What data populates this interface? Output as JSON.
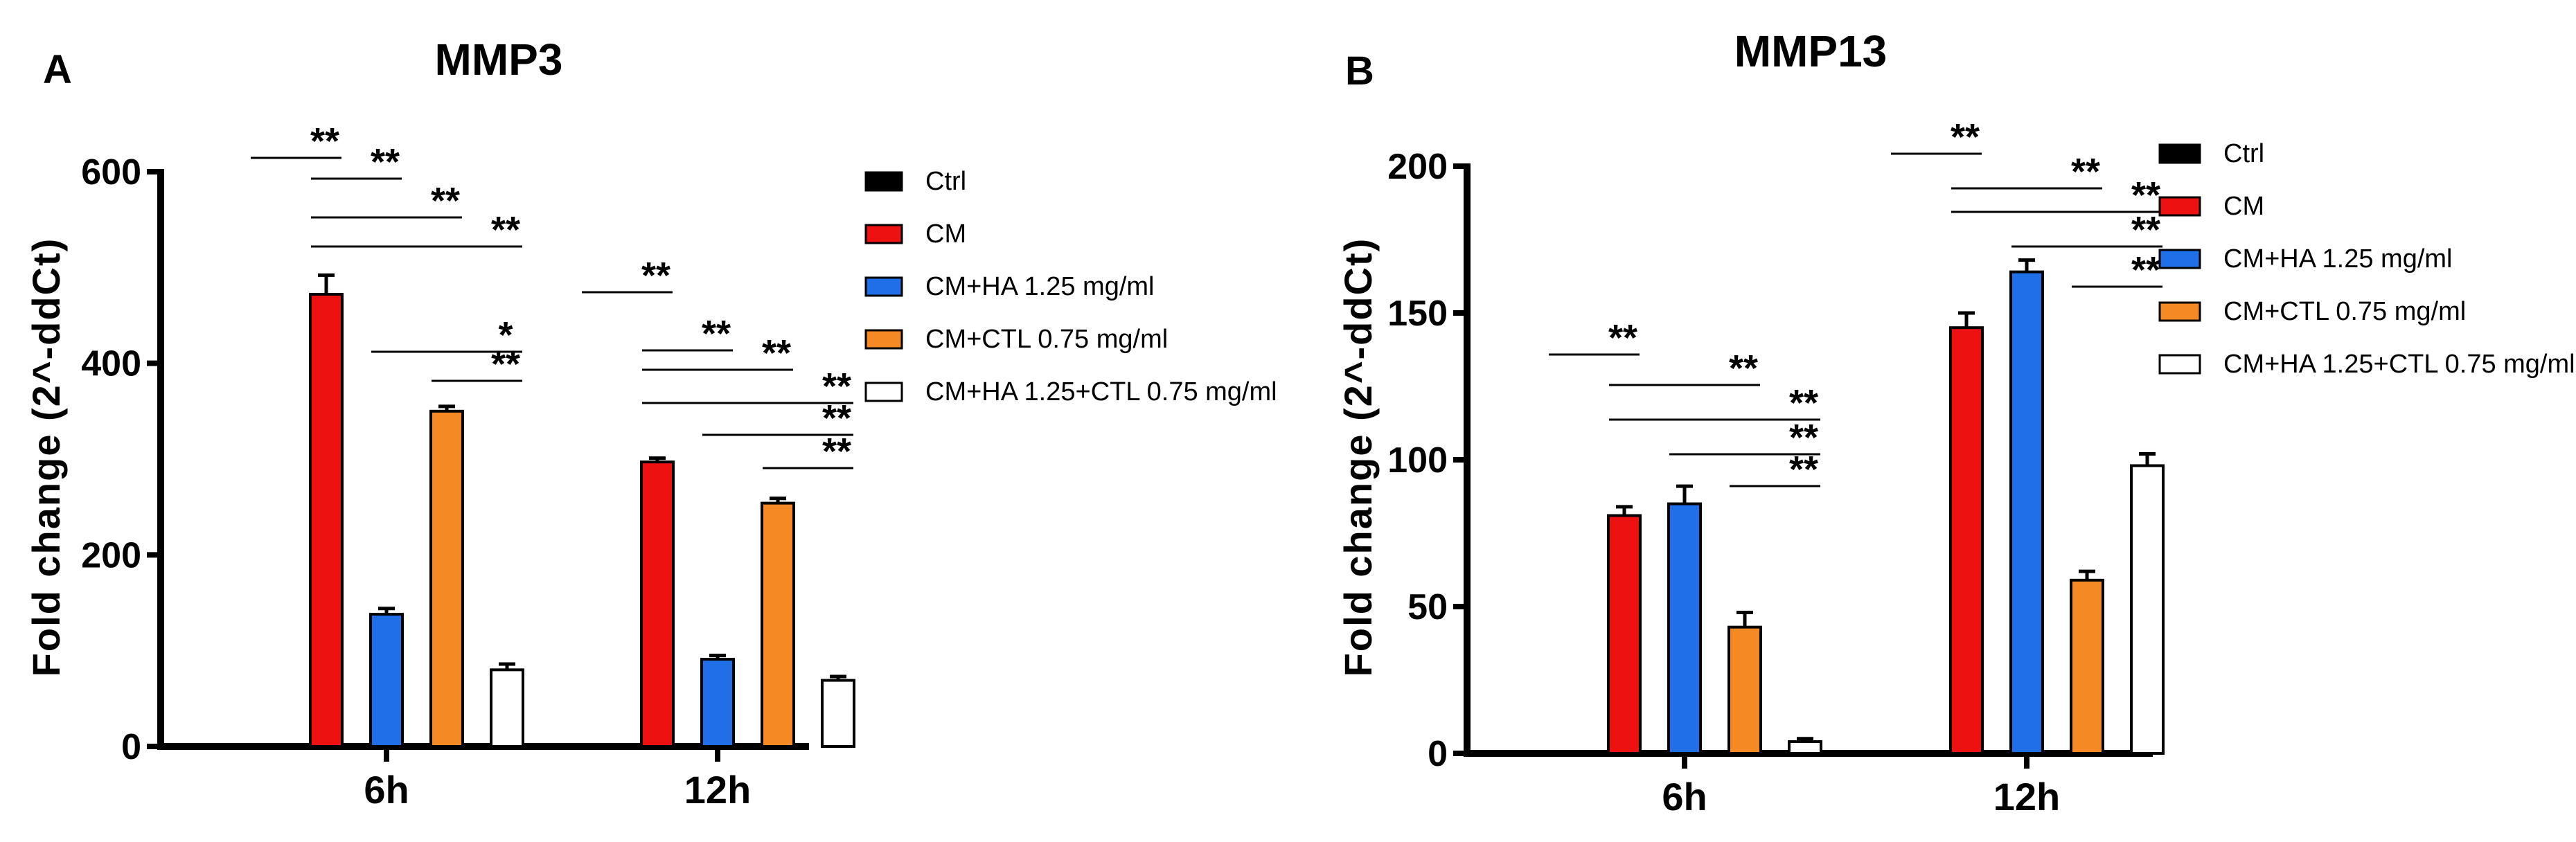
{
  "chart_data": [
    {
      "type": "bar",
      "panel": "A",
      "title": "MMP3",
      "xlabel": "",
      "ylabel": "Fold change (2^-ddCt)",
      "ylim": [
        0,
        600
      ],
      "yticks": [
        0,
        200,
        400,
        600
      ],
      "categories": [
        "6h",
        "12h"
      ],
      "series": [
        {
          "name": "Ctrl",
          "values": [
            0,
            0
          ],
          "errors": [
            0,
            0
          ]
        },
        {
          "name": "CM",
          "values": [
            472,
            297
          ],
          "errors": [
            20,
            4
          ]
        },
        {
          "name": "CM+HA 1.25 mg/ml",
          "values": [
            138,
            91
          ],
          "errors": [
            6,
            4
          ]
        },
        {
          "name": "CM+CTL 0.75 mg/ml",
          "values": [
            350,
            254
          ],
          "errors": [
            5,
            5
          ]
        },
        {
          "name": "CM+HA 1.25+CTL 0.75  mg/ml",
          "values": [
            80,
            69
          ],
          "errors": [
            6,
            4
          ]
        }
      ],
      "significance": [
        {
          "category": "6h",
          "from": "Ctrl",
          "to": "CM",
          "label": "**"
        },
        {
          "category": "6h",
          "from": "CM",
          "to": "CM+HA 1.25 mg/ml",
          "label": "**"
        },
        {
          "category": "6h",
          "from": "CM",
          "to": "CM+CTL 0.75 mg/ml",
          "label": "**"
        },
        {
          "category": "6h",
          "from": "CM",
          "to": "CM+HA 1.25+CTL 0.75  mg/ml",
          "label": "**"
        },
        {
          "category": "6h",
          "from": "CM+HA 1.25 mg/ml",
          "to": "CM+HA 1.25+CTL 0.75  mg/ml",
          "label": "*"
        },
        {
          "category": "6h",
          "from": "CM+CTL 0.75 mg/ml",
          "to": "CM+HA 1.25+CTL 0.75  mg/ml",
          "label": "**"
        },
        {
          "category": "12h",
          "from": "Ctrl",
          "to": "CM",
          "label": "**"
        },
        {
          "category": "12h",
          "from": "CM",
          "to": "CM+HA 1.25 mg/ml",
          "label": "**"
        },
        {
          "category": "12h",
          "from": "CM",
          "to": "CM+CTL 0.75 mg/ml",
          "label": "**"
        },
        {
          "category": "12h",
          "from": "CM",
          "to": "CM+HA 1.25+CTL 0.75  mg/ml",
          "label": "**"
        },
        {
          "category": "12h",
          "from": "CM+HA 1.25 mg/ml",
          "to": "CM+HA 1.25+CTL 0.75  mg/ml",
          "label": "**"
        },
        {
          "category": "12h",
          "from": "CM+CTL 0.75 mg/ml",
          "to": "CM+HA 1.25+CTL 0.75  mg/ml",
          "label": "**"
        }
      ],
      "legend": "right",
      "grid": false
    },
    {
      "type": "bar",
      "panel": "B",
      "title": "MMP13",
      "xlabel": "",
      "ylabel": "Fold change (2^-ddCt)",
      "ylim": [
        0,
        200
      ],
      "yticks": [
        0,
        50,
        100,
        150,
        200
      ],
      "categories": [
        "6h",
        "12h"
      ],
      "series": [
        {
          "name": "Ctrl",
          "values": [
            0,
            0
          ],
          "errors": [
            0,
            0
          ]
        },
        {
          "name": "CM",
          "values": [
            81,
            145
          ],
          "errors": [
            3,
            5
          ]
        },
        {
          "name": "CM+HA 1.25 mg/ml",
          "values": [
            85,
            164
          ],
          "errors": [
            6,
            4
          ]
        },
        {
          "name": "CM+CTL 0.75 mg/ml",
          "values": [
            43,
            59
          ],
          "errors": [
            5,
            3
          ]
        },
        {
          "name": "CM+HA 1.25+CTL 0.75  mg/ml",
          "values": [
            4,
            98
          ],
          "errors": [
            1,
            4
          ]
        }
      ],
      "significance": [
        {
          "category": "6h",
          "from": "Ctrl",
          "to": "CM",
          "label": "**"
        },
        {
          "category": "6h",
          "from": "CM",
          "to": "CM+CTL 0.75 mg/ml",
          "label": "**"
        },
        {
          "category": "6h",
          "from": "CM",
          "to": "CM+HA 1.25+CTL 0.75  mg/ml",
          "label": "**"
        },
        {
          "category": "6h",
          "from": "CM+HA 1.25 mg/ml",
          "to": "CM+HA 1.25+CTL 0.75  mg/ml",
          "label": "**"
        },
        {
          "category": "6h",
          "from": "CM+CTL 0.75 mg/ml",
          "to": "CM+HA 1.25+CTL 0.75  mg/ml",
          "label": "**"
        },
        {
          "category": "12h",
          "from": "Ctrl",
          "to": "CM",
          "label": "**"
        },
        {
          "category": "12h",
          "from": "CM",
          "to": "CM+CTL 0.75 mg/ml",
          "label": "**"
        },
        {
          "category": "12h",
          "from": "CM",
          "to": "CM+HA 1.25+CTL 0.75  mg/ml",
          "label": "**"
        },
        {
          "category": "12h",
          "from": "CM+HA 1.25 mg/ml",
          "to": "CM+HA 1.25+CTL 0.75  mg/ml",
          "label": "**"
        },
        {
          "category": "12h",
          "from": "CM+CTL 0.75 mg/ml",
          "to": "CM+HA 1.25+CTL 0.75  mg/ml",
          "label": "**"
        }
      ],
      "legend": "right",
      "grid": false
    }
  ],
  "colors": {
    "Ctrl": "#000000",
    "CM": "#ee1111",
    "CM+HA 1.25 mg/ml": "#1f6fe8",
    "CM+CTL 0.75 mg/ml": "#f58a24",
    "CM+HA 1.25+CTL 0.75  mg/ml": "#ffffff",
    "outline": "#000000"
  }
}
